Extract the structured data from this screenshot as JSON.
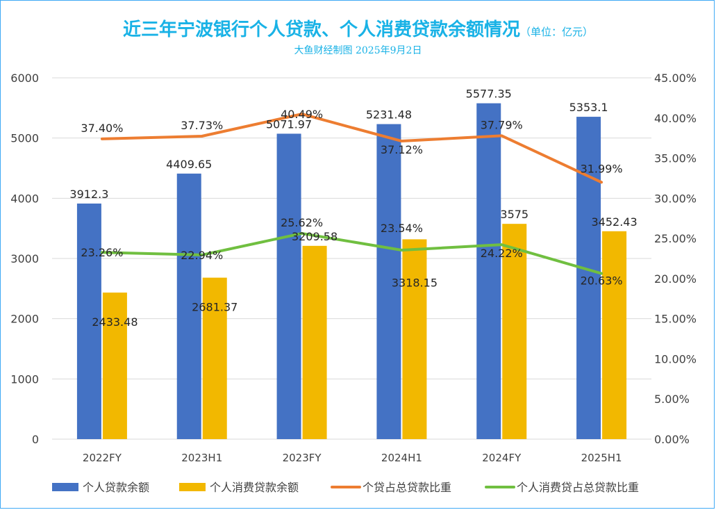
{
  "header": {
    "title": "近三年宁波银行个人贷款、个人消费贷款余额情况",
    "unit": "（单位：亿元）",
    "subtitle": "大鱼财经制图 2025年9月2日"
  },
  "colors": {
    "personal_loan_bar": "#4472c4",
    "consumer_loan_bar": "#f2b800",
    "personal_ratio_line": "#ed7d31",
    "consumer_ratio_line": "#70bf40",
    "title": "#19b2e6",
    "grid": "#d9d9d9",
    "axis_text": "#404040"
  },
  "chart_data": {
    "type": "bar",
    "title": "近三年宁波银行个人贷款、个人消费贷款余额情况",
    "categories": [
      "2022FY",
      "2023H1",
      "2023FY",
      "2024H1",
      "2024FY",
      "2025H1"
    ],
    "y_left": {
      "ylim": [
        0,
        6000
      ],
      "ticks": [
        0,
        1000,
        2000,
        3000,
        4000,
        5000,
        6000
      ],
      "tick_labels": [
        "0",
        "1000",
        "2000",
        "3000",
        "4000",
        "5000",
        "6000"
      ]
    },
    "y_right": {
      "ylim": [
        0,
        45
      ],
      "ticks": [
        0,
        5,
        10,
        15,
        20,
        25,
        30,
        35,
        40,
        45
      ],
      "tick_labels": [
        "0.00%",
        "5.00%",
        "10.00%",
        "15.00%",
        "20.00%",
        "25.00%",
        "30.00%",
        "35.00%",
        "40.00%",
        "45.00%"
      ]
    },
    "grid": true,
    "legend_position": "bottom",
    "series": [
      {
        "name": "个人贷款余额",
        "type": "bar",
        "axis": "left",
        "values": [
          3912.3,
          4409.65,
          5071.97,
          5231.48,
          5577.35,
          5353.1
        ],
        "labels": [
          "3912.3",
          "4409.65",
          "5071.97",
          "5231.48",
          "5577.35",
          "5353.1"
        ]
      },
      {
        "name": "个人消费贷款余额",
        "type": "bar",
        "axis": "left",
        "values": [
          2433.48,
          2681.37,
          3209.58,
          3318.15,
          3575,
          3452.43
        ],
        "labels": [
          "2433.48",
          "2681.37",
          "3209.58",
          "3318.15",
          "3575",
          "3452.43"
        ]
      },
      {
        "name": "个贷占总贷款比重",
        "type": "line",
        "axis": "right",
        "values": [
          37.4,
          37.73,
          40.49,
          37.12,
          37.79,
          31.99
        ],
        "labels": [
          "37.40%",
          "37.73%",
          "40.49%",
          "37.12%",
          "37.79%",
          "31.99%"
        ]
      },
      {
        "name": "个人消费贷占总贷款比重",
        "type": "line",
        "axis": "right",
        "values": [
          23.26,
          22.94,
          25.62,
          23.54,
          24.22,
          20.63
        ],
        "labels": [
          "23.26%",
          "22.94%",
          "25.62%",
          "23.54%",
          "24.22%",
          "20.63%"
        ]
      }
    ]
  }
}
